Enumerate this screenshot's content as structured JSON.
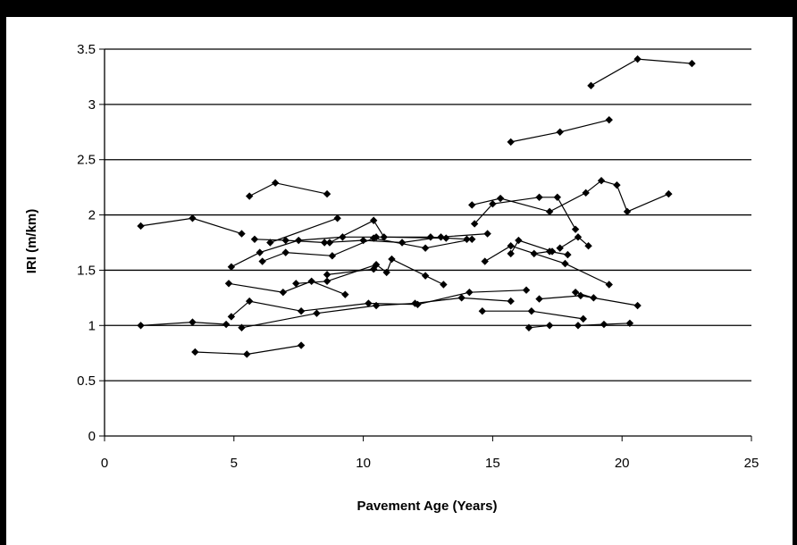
{
  "chart_data": {
    "type": "line",
    "xlabel": "Pavement Age (Years)",
    "ylabel": "IRI (m/km)",
    "xlim": [
      0,
      25
    ],
    "ylim": [
      0,
      3.5
    ],
    "x_ticks": [
      "0",
      "5",
      "10",
      "15",
      "20",
      "25"
    ],
    "y_ticks": [
      "0",
      "0.5",
      "1",
      "1.5",
      "2",
      "2.5",
      "3",
      "3.5"
    ],
    "grid": "horizontal",
    "legend": "none",
    "marker": "diamond",
    "color": "#000000",
    "series": [
      {
        "points": [
          [
            1.4,
            1.9
          ],
          [
            3.4,
            1.97
          ],
          [
            5.3,
            1.83
          ]
        ]
      },
      {
        "points": [
          [
            1.4,
            1.0
          ],
          [
            3.4,
            1.03
          ],
          [
            4.7,
            1.01
          ]
        ]
      },
      {
        "points": [
          [
            3.5,
            0.76
          ],
          [
            5.5,
            0.74
          ],
          [
            7.6,
            0.82
          ]
        ]
      },
      {
        "points": [
          [
            5.6,
            2.17
          ],
          [
            6.6,
            2.29
          ],
          [
            8.6,
            2.19
          ]
        ]
      },
      {
        "points": [
          [
            4.9,
            1.53
          ],
          [
            6.0,
            1.66
          ],
          [
            7.5,
            1.77
          ],
          [
            9.2,
            1.8
          ],
          [
            10.5,
            1.8
          ],
          [
            12.6,
            1.8
          ],
          [
            14.0,
            1.78
          ]
        ]
      },
      {
        "points": [
          [
            5.8,
            1.78
          ],
          [
            7.0,
            1.77
          ],
          [
            8.5,
            1.75
          ],
          [
            10.0,
            1.77
          ],
          [
            11.5,
            1.75
          ],
          [
            13.0,
            1.8
          ],
          [
            14.8,
            1.83
          ]
        ]
      },
      {
        "points": [
          [
            6.1,
            1.58
          ],
          [
            7.0,
            1.66
          ],
          [
            8.8,
            1.63
          ],
          [
            10.4,
            1.79
          ],
          [
            12.4,
            1.7
          ],
          [
            14.2,
            1.78
          ]
        ]
      },
      {
        "points": [
          [
            6.4,
            1.75
          ],
          [
            9.0,
            1.97
          ]
        ]
      },
      {
        "points": [
          [
            8.7,
            1.75
          ],
          [
            10.4,
            1.95
          ],
          [
            10.8,
            1.8
          ],
          [
            13.2,
            1.79
          ]
        ]
      },
      {
        "points": [
          [
            4.8,
            1.38
          ],
          [
            6.9,
            1.3
          ],
          [
            8.0,
            1.4
          ],
          [
            9.3,
            1.28
          ]
        ]
      },
      {
        "points": [
          [
            4.9,
            1.08
          ],
          [
            5.6,
            1.22
          ],
          [
            7.6,
            1.13
          ],
          [
            10.2,
            1.2
          ],
          [
            12.1,
            1.19
          ],
          [
            14.1,
            1.3
          ],
          [
            16.3,
            1.32
          ]
        ]
      },
      {
        "points": [
          [
            5.3,
            0.98
          ],
          [
            8.2,
            1.11
          ],
          [
            10.5,
            1.18
          ],
          [
            12.0,
            1.2
          ],
          [
            13.8,
            1.25
          ],
          [
            15.7,
            1.22
          ]
        ]
      },
      {
        "points": [
          [
            7.4,
            1.38
          ],
          [
            8.6,
            1.4
          ],
          [
            10.5,
            1.55
          ],
          [
            10.9,
            1.48
          ],
          [
            11.1,
            1.6
          ],
          [
            12.4,
            1.45
          ],
          [
            13.1,
            1.37
          ]
        ]
      },
      {
        "points": [
          [
            8.6,
            1.46
          ],
          [
            10.4,
            1.51
          ]
        ]
      },
      {
        "points": [
          [
            14.3,
            1.92
          ],
          [
            15.0,
            2.1
          ],
          [
            16.8,
            2.16
          ],
          [
            17.5,
            2.16
          ],
          [
            18.2,
            1.87
          ]
        ]
      },
      {
        "points": [
          [
            14.2,
            2.09
          ],
          [
            15.3,
            2.15
          ],
          [
            17.2,
            2.03
          ],
          [
            18.6,
            2.2
          ],
          [
            19.2,
            2.31
          ],
          [
            19.8,
            2.27
          ],
          [
            20.2,
            2.03
          ],
          [
            21.8,
            2.19
          ]
        ]
      },
      {
        "points": [
          [
            14.7,
            1.58
          ],
          [
            15.7,
            1.72
          ],
          [
            17.8,
            1.56
          ],
          [
            19.5,
            1.37
          ]
        ]
      },
      {
        "points": [
          [
            14.6,
            1.13
          ],
          [
            16.5,
            1.13
          ],
          [
            18.5,
            1.06
          ]
        ]
      },
      {
        "points": [
          [
            15.7,
            1.65
          ],
          [
            16.0,
            1.77
          ],
          [
            17.3,
            1.67
          ]
        ]
      },
      {
        "points": [
          [
            15.7,
            2.66
          ],
          [
            17.6,
            2.75
          ],
          [
            19.5,
            2.86
          ]
        ]
      },
      {
        "points": [
          [
            16.4,
            0.98
          ],
          [
            17.2,
            1.0
          ],
          [
            18.3,
            1.0
          ],
          [
            19.3,
            1.01
          ],
          [
            20.3,
            1.02
          ]
        ]
      },
      {
        "points": [
          [
            16.8,
            1.24
          ],
          [
            18.4,
            1.27
          ],
          [
            20.6,
            1.18
          ]
        ]
      },
      {
        "points": [
          [
            16.6,
            1.65
          ],
          [
            17.2,
            1.67
          ],
          [
            17.9,
            1.64
          ]
        ]
      },
      {
        "points": [
          [
            18.2,
            1.3
          ],
          [
            18.9,
            1.25
          ]
        ]
      },
      {
        "points": [
          [
            18.8,
            3.17
          ],
          [
            20.6,
            3.41
          ],
          [
            22.7,
            3.37
          ]
        ]
      },
      {
        "points": [
          [
            17.6,
            1.7
          ],
          [
            18.3,
            1.8
          ],
          [
            18.7,
            1.72
          ]
        ]
      }
    ]
  }
}
